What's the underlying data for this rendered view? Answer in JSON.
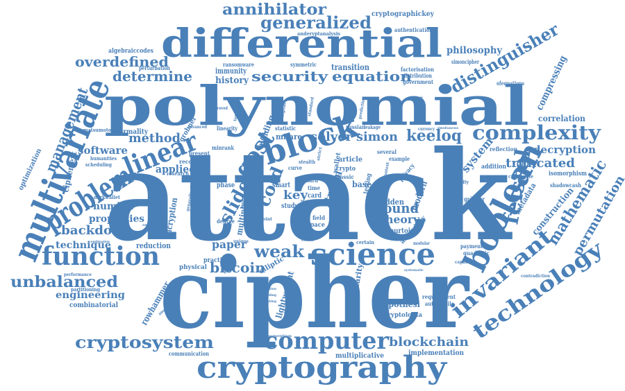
{
  "color": "#4a80b8",
  "words": {
    "attack": "attack",
    "cipher": "cipher",
    "polynomial": "polynomial",
    "differential": "differential",
    "multivariate": "multivariate",
    "cryptography": "cryptography",
    "science": "science",
    "boolean": "boolean",
    "function": "function",
    "computer": "computer",
    "block": "block",
    "linear": "linear",
    "problem": "problem",
    "technology": "technology",
    "complexity": "complexity",
    "invariant": "invariant",
    "feistel": "feistel",
    "cryptosystem": "cryptosystem",
    "distinguisher": "distinguisher",
    "generalized": "generalized",
    "annihilator": "annihilator",
    "security": "security",
    "equation": "equation",
    "overdefined": "overdefined",
    "determine": "determine",
    "method": "method",
    "gost": "gost",
    "keeloq": "keeloq",
    "solver": "solver",
    "simon": "simon",
    "weak": "weak",
    "bitcoin": "bitcoin",
    "unbalanced": "unbalanced",
    "blockchain": "blockchain",
    "truncated": "truncated",
    "decryption": "decryption",
    "mathematic": "mathematic",
    "permutation": "permutation",
    "management": "management",
    "software": "software",
    "applied": "applied",
    "backdoor": "backdoor",
    "technique": "technique",
    "properties": "properties",
    "number": "number",
    "engineering": "engineering",
    "key": "key",
    "round": "round",
    "theory": "theory",
    "stream": "stream",
    "slide": "slide",
    "cold": "cold",
    "paper": "paper",
    "encryption": "encryption",
    "reduction": "reduction",
    "construction": "construction",
    "system": "system",
    "correlation": "correlation",
    "compressing": "compressing",
    "philosophy": "philosophy",
    "history": "history",
    "transition": "transition",
    "immunity": "immunity",
    "combinatorial": "combinatorial",
    "rowhammer": "rowhammer",
    "cryptographickey": "cryptographickey",
    "authentication": "authentication",
    "algebraiccodes": "algebraiccodes",
    "ransomware": "ransomware",
    "symmetric": "symmetric",
    "factorisation": "factorisation",
    "distribution": "distribution",
    "government": "government",
    "simoncipher": "simoncipher",
    "perturbation": "perturbation",
    "normality": "normality",
    "grobner": "grobner",
    "mifare": "mifare",
    "building": "building",
    "article": "article",
    "lightweight": "lightweight",
    "hypothesi": "hypothesi",
    "cryptologia": "cryptologia",
    "implementation": "implementation",
    "multiplicative": "multiplicative",
    "communication": "communication",
    "optimization": "optimization",
    "ciphertext": "ciphertext",
    "matsumoto": "matsumoto",
    "metadata": "metadata",
    "isomorphism": "isomorphism",
    "reflection": "reflection",
    "addition": "addition",
    "shadowcash": "shadowcash",
    "cryptonote": "cryptonote",
    "obscurity": "obscurity",
    "payment": "payment",
    "quadratic": "quadratic",
    "requirement": "requirement",
    "automobile": "automobile",
    "contradiction": "contradiction",
    "capability": "capability",
    "modern": "modern",
    "hidden": "hidden",
    "courtois": "courtois",
    "anonymity": "anonymity",
    "similarity": "similarity",
    "practical": "practical",
    "physical": "physical",
    "variable": "variable",
    "multiple": "multiple",
    "elliptic": "elliptic",
    "darkwallet": "darkwallet",
    "humanities": "humanities",
    "scheduling": "scheduling",
    "partitioning": "partitioning",
    "performance": "performance",
    "recovery": "recovery",
    "research": "research",
    "present": "present",
    "minrank": "minrank",
    "advanced": "advanced",
    "degree": "degree",
    "phase": "phase",
    "smart": "smart",
    "study": "study",
    "card": "card",
    "time": "time",
    "hard": "hard",
    "base": "base",
    "classic": "classic",
    "crypto": "crypto",
    "several": "several",
    "example": "example",
    "testing": "testing",
    "privacy": "privacy",
    "field": "field",
    "space": "space",
    "many": "many",
    "certain": "certain",
    "unique": "unique",
    "gaussian": "gaussian",
    "gs_solver": "gröbner",
    "statistic": "statistic",
    "russian": "russian",
    "leakage": "leakage",
    "currency": "currency",
    "ofequations": "ofequations",
    "anderyptanalysis": "anderyptanalysis",
    "linearity": "linearity",
    "improved": "improved",
    "combination": "combination",
    "embedded": "embedded",
    "wallet": "wallet",
    "curve": "curve",
    "stealth": "stealth",
    "transaction": "transaction",
    "embedding": "embedding",
    "interesting": "interesting",
    "systematic": "systematic",
    "modular": "modular",
    "result": "result",
    "strict": "strict",
    "flcsomorphism": "flcsomorphism",
    "point": "point",
    "generalised": "generalised",
    "grade": "grade",
    "word": "word",
    "data": "data",
    "cycle": "cycle",
    "design": "design",
    "cryptographic": "cryptographic",
    "prediction": "prediction",
    "standard": "standard",
    "context": "context",
    "simultaneous": "simultaneous",
    "temporal": "temporal",
    "anonymous": "anonymous",
    "digital": "digital"
  }
}
